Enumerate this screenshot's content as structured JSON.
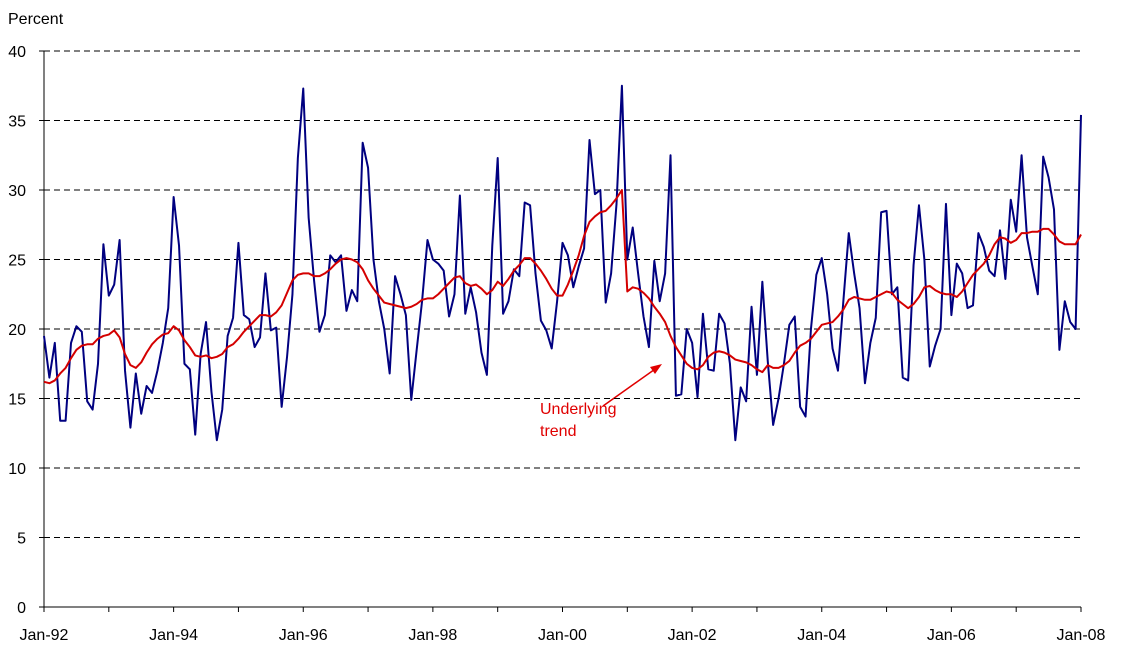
{
  "chart_data": {
    "type": "line",
    "y_label": "Percent",
    "annotation": {
      "lines": [
        "Underlying",
        "trend"
      ],
      "color": "#e00000"
    },
    "ylim": [
      0,
      40
    ],
    "yticks": [
      0,
      5,
      10,
      15,
      20,
      25,
      30,
      35,
      40
    ],
    "grid": true,
    "categories": [
      "Jan-92",
      null,
      null,
      null,
      null,
      null,
      null,
      null,
      null,
      null,
      null,
      null,
      null,
      null,
      null,
      null,
      null,
      null,
      null,
      null,
      null,
      null,
      null,
      null,
      "Jan-94",
      null,
      null,
      null,
      null,
      null,
      null,
      null,
      null,
      null,
      null,
      null,
      null,
      null,
      null,
      null,
      null,
      null,
      null,
      null,
      null,
      null,
      null,
      null,
      "Jan-96",
      null,
      null,
      null,
      null,
      null,
      null,
      null,
      null,
      null,
      null,
      null,
      null,
      null,
      null,
      null,
      null,
      null,
      null,
      null,
      null,
      null,
      null,
      null,
      "Jan-98",
      null,
      null,
      null,
      null,
      null,
      null,
      null,
      null,
      null,
      null,
      null,
      null,
      null,
      null,
      null,
      null,
      null,
      null,
      null,
      null,
      null,
      null,
      null,
      "Jan-00",
      null,
      null,
      null,
      null,
      null,
      null,
      null,
      null,
      null,
      null,
      null,
      null,
      null,
      null,
      null,
      null,
      null,
      null,
      null,
      null,
      null,
      null,
      null,
      "Jan-02",
      null,
      null,
      null,
      null,
      null,
      null,
      null,
      null,
      null,
      null,
      null,
      null,
      null,
      null,
      null,
      null,
      null,
      null,
      null,
      null,
      null,
      null,
      null,
      "Jan-04",
      null,
      null,
      null,
      null,
      null,
      null,
      null,
      null,
      null,
      null,
      null,
      null,
      null,
      null,
      null,
      null,
      null,
      null,
      null,
      null,
      null,
      null,
      null,
      "Jan-06",
      null,
      null,
      null,
      null,
      null,
      null,
      null,
      null,
      null,
      null,
      null,
      null,
      null,
      null,
      null,
      null,
      null,
      null,
      null,
      null,
      null,
      null,
      null,
      "Jan-08"
    ],
    "series": [
      {
        "color": "#000080",
        "values": [
          19.5,
          16.5,
          19,
          13.4,
          13.4,
          19,
          20.2,
          19.8,
          14.8,
          14.2,
          17.5,
          26.1,
          22.4,
          23.2,
          26.4,
          17,
          12.9,
          16.8,
          13.9,
          15.9,
          15.4,
          17,
          19,
          21.5,
          29.5,
          26,
          17.5,
          17.1,
          12.4,
          18.2,
          20.5,
          15.5,
          12,
          14.2,
          19.5,
          20.8,
          26.2,
          21,
          20.7,
          18.7,
          19.4,
          24,
          19.9,
          20.1,
          14.4,
          18,
          22.5,
          32.3,
          37.3,
          28,
          23.5,
          19.8,
          21,
          25.3,
          24.8,
          25.3,
          21.3,
          22.8,
          22,
          33.4,
          31.6,
          25,
          22,
          20,
          16.8,
          23.8,
          22.5,
          21,
          14.9,
          18.5,
          22,
          26.4,
          25,
          24.7,
          24.2,
          20.9,
          22.5,
          29.6,
          21.1,
          23,
          21.2,
          18.3,
          16.7,
          26,
          32.3,
          21.1,
          22,
          24.3,
          23.8,
          29.1,
          28.9,
          24,
          20.6,
          19.9,
          18.6,
          22,
          26.2,
          25.3,
          23,
          24.5,
          25.8,
          33.6,
          29.7,
          30,
          21.9,
          24,
          29,
          37.5,
          25,
          27.3,
          24,
          20.9,
          18.7,
          24.9,
          22,
          24,
          32.5,
          15.2,
          15.3,
          20,
          19,
          15.1,
          21.1,
          17.1,
          17,
          21.1,
          20.4,
          17.5,
          12,
          15.8,
          14.8,
          21.6,
          16.7,
          23.4,
          17.7,
          13.1,
          15,
          17.5,
          20.3,
          20.9,
          14.4,
          13.7,
          20,
          23.9,
          25.1,
          22.5,
          18.6,
          17,
          22,
          26.9,
          24,
          21.5,
          16.1,
          19,
          20.8,
          28.4,
          28.5,
          22.5,
          23,
          16.5,
          16.3,
          24.6,
          28.9,
          25,
          17.3,
          18.8,
          20,
          29,
          21,
          24.7,
          24,
          21.5,
          21.7,
          26.9,
          25.9,
          24.2,
          23.8,
          27.1,
          23.6,
          29.3,
          27,
          32.5,
          26.6,
          24.5,
          22.5,
          32.4,
          30.9,
          28.6,
          18.5,
          22,
          20.5,
          20,
          35.4
        ]
      },
      {
        "color": "#d40000",
        "values": [
          16.2,
          16.1,
          16.3,
          16.8,
          17.2,
          17.9,
          18.5,
          18.8,
          18.9,
          18.9,
          19.3,
          19.5,
          19.6,
          19.9,
          19.4,
          18.2,
          17.4,
          17.2,
          17.6,
          18.3,
          18.9,
          19.3,
          19.6,
          19.7,
          20.2,
          19.9,
          19.2,
          18.7,
          18.1,
          18,
          18.1,
          17.9,
          18,
          18.2,
          18.7,
          18.9,
          19.3,
          19.8,
          20.2,
          20.6,
          21,
          21,
          20.9,
          21.2,
          21.7,
          22.6,
          23.5,
          23.9,
          24,
          24,
          23.8,
          23.8,
          24,
          24.3,
          24.7,
          25,
          25.1,
          25,
          24.8,
          24.3,
          23.5,
          22.9,
          22.4,
          21.9,
          21.8,
          21.7,
          21.6,
          21.5,
          21.6,
          21.8,
          22.1,
          22.2,
          22.2,
          22.5,
          22.9,
          23.3,
          23.7,
          23.8,
          23.3,
          23.1,
          23.2,
          22.9,
          22.5,
          22.8,
          23.4,
          23.1,
          23.6,
          24.2,
          24.6,
          25.1,
          25.1,
          24.7,
          24.2,
          23.6,
          22.9,
          22.4,
          22.4,
          23.2,
          24.2,
          25.3,
          26.7,
          27.7,
          28.1,
          28.4,
          28.5,
          28.9,
          29.4,
          30,
          22.7,
          23,
          22.9,
          22.6,
          22.2,
          21.6,
          21.1,
          20.5,
          19.5,
          18.7,
          18.1,
          17.5,
          17.2,
          17.1,
          17.4,
          18,
          18.3,
          18.4,
          18.3,
          18.1,
          17.8,
          17.7,
          17.6,
          17.4,
          17.1,
          16.9,
          17.4,
          17.2,
          17.2,
          17.4,
          17.7,
          18.3,
          18.8,
          19,
          19.3,
          19.8,
          20.3,
          20.4,
          20.5,
          20.9,
          21.4,
          22.1,
          22.3,
          22.2,
          22.1,
          22.1,
          22.3,
          22.5,
          22.7,
          22.6,
          22.1,
          21.8,
          21.5,
          21.8,
          22.3,
          23,
          23.1,
          22.8,
          22.6,
          22.5,
          22.5,
          22.3,
          22.7,
          23.3,
          23.9,
          24.3,
          24.7,
          25.3,
          26.1,
          26.6,
          26.5,
          26.2,
          26.4,
          26.9,
          26.9,
          27,
          27,
          27.2,
          27.2,
          26.8,
          26.3,
          26.1,
          26.1,
          26.1,
          26.8
        ]
      }
    ]
  }
}
